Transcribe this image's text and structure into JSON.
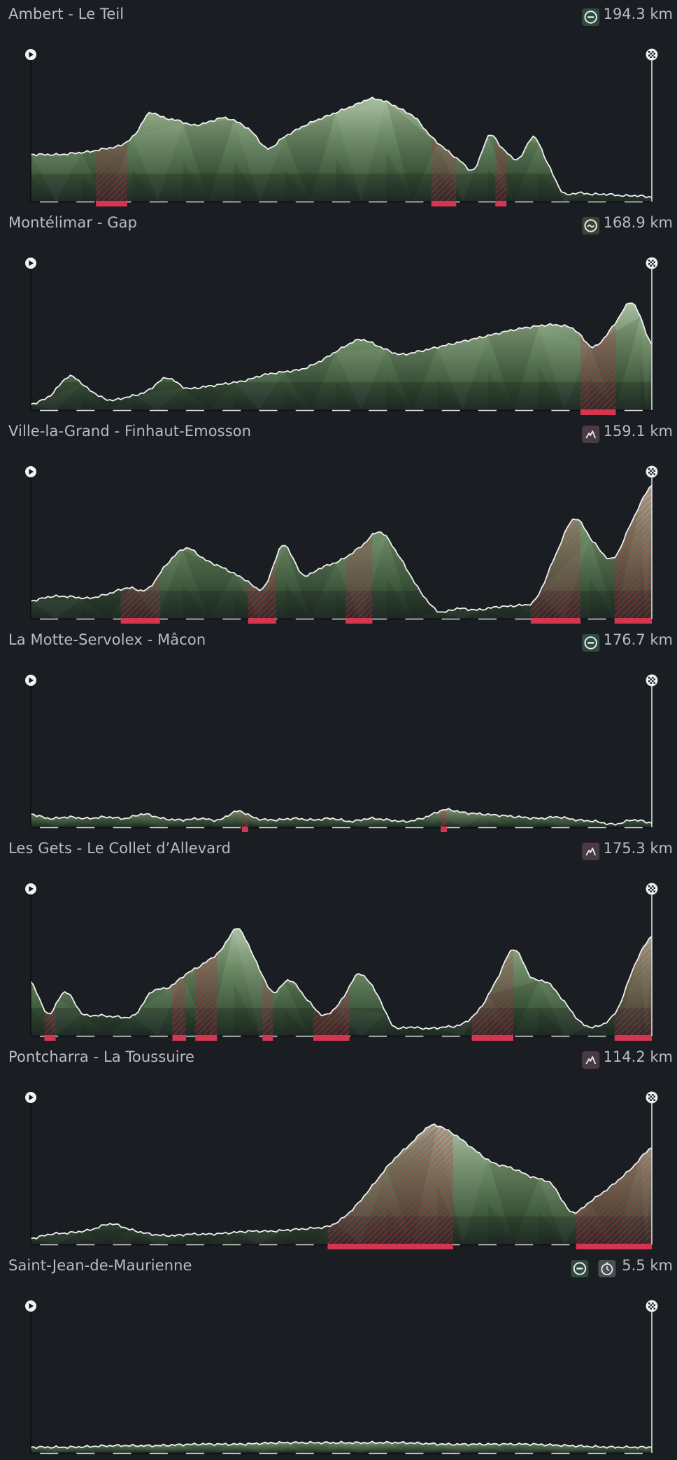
{
  "chart_data": [
    {
      "type": "area",
      "title": "Ambert - Le Teil",
      "distance": "194.3 km",
      "stage_types": [
        "flat-icon"
      ],
      "elevation_profile": [
        0.32,
        0.32,
        0.32,
        0.33,
        0.34,
        0.36,
        0.38,
        0.45,
        0.6,
        0.57,
        0.55,
        0.52,
        0.54,
        0.57,
        0.54,
        0.47,
        0.36,
        0.43,
        0.49,
        0.54,
        0.58,
        0.62,
        0.66,
        0.7,
        0.68,
        0.63,
        0.57,
        0.45,
        0.36,
        0.28,
        0.22,
        0.45,
        0.35,
        0.29,
        0.44,
        0.25,
        0.06,
        0.06,
        0.05,
        0.05,
        0.04,
        0.04,
        0.03
      ],
      "climbs": [
        [
          0.105,
          0.155
        ],
        [
          0.645,
          0.685
        ],
        [
          0.748,
          0.766
        ]
      ]
    },
    {
      "type": "area",
      "title": "Montélimar - Gap",
      "distance": "168.9 km",
      "stage_types": [
        "hilly-icon"
      ],
      "elevation_profile": [
        0.04,
        0.1,
        0.23,
        0.14,
        0.07,
        0.09,
        0.13,
        0.22,
        0.15,
        0.16,
        0.18,
        0.2,
        0.24,
        0.26,
        0.28,
        0.34,
        0.42,
        0.48,
        0.43,
        0.38,
        0.4,
        0.43,
        0.46,
        0.49,
        0.52,
        0.55,
        0.57,
        0.58,
        0.55,
        0.43,
        0.57,
        0.73,
        0.45
      ],
      "climbs": [
        [
          0.885,
          0.942
        ]
      ]
    },
    {
      "type": "area",
      "title": "Ville-la-Grand - Finhaut-Emosson",
      "distance": "159.1 km",
      "stage_types": [
        "mountain-icon"
      ],
      "elevation_profile": [
        0.12,
        0.15,
        0.15,
        0.14,
        0.17,
        0.21,
        0.2,
        0.37,
        0.48,
        0.4,
        0.34,
        0.27,
        0.21,
        0.5,
        0.3,
        0.35,
        0.4,
        0.49,
        0.59,
        0.42,
        0.2,
        0.05,
        0.07,
        0.06,
        0.08,
        0.09,
        0.13,
        0.42,
        0.68,
        0.52,
        0.41,
        0.67,
        0.91
      ],
      "climbs": [
        [
          0.145,
          0.208
        ],
        [
          0.35,
          0.395
        ],
        [
          0.507,
          0.55
        ],
        [
          0.805,
          0.885
        ],
        [
          0.94,
          1.0
        ]
      ]
    },
    {
      "type": "area",
      "title": "La Motte-Servolex - Mâcon",
      "distance": "176.7 km",
      "stage_types": [
        "flat-icon"
      ],
      "elevation_profile": [
        0.09,
        0.06,
        0.07,
        0.06,
        0.07,
        0.06,
        0.09,
        0.06,
        0.05,
        0.06,
        0.05,
        0.11,
        0.06,
        0.05,
        0.06,
        0.05,
        0.06,
        0.04,
        0.06,
        0.05,
        0.04,
        0.07,
        0.12,
        0.1,
        0.09,
        0.08,
        0.07,
        0.06,
        0.07,
        0.05,
        0.04,
        0.02,
        0.05,
        0.03
      ],
      "climbs": [
        [
          0.34,
          0.35
        ],
        [
          0.66,
          0.67
        ]
      ]
    },
    {
      "type": "area",
      "title": "Les Gets - Le Collet d’Allevard",
      "distance": "175.3 km",
      "stage_types": [
        "mountain-icon"
      ],
      "elevation_profile": [
        0.37,
        0.15,
        0.3,
        0.15,
        0.14,
        0.13,
        0.14,
        0.3,
        0.33,
        0.42,
        0.49,
        0.58,
        0.73,
        0.52,
        0.3,
        0.38,
        0.25,
        0.14,
        0.24,
        0.42,
        0.3,
        0.07,
        0.06,
        0.05,
        0.06,
        0.08,
        0.18,
        0.38,
        0.59,
        0.4,
        0.36,
        0.22,
        0.08,
        0.07,
        0.18,
        0.48,
        0.68
      ],
      "climbs": [
        [
          0.022,
          0.04
        ],
        [
          0.228,
          0.25
        ],
        [
          0.265,
          0.3
        ],
        [
          0.373,
          0.39
        ],
        [
          0.455,
          0.513
        ],
        [
          0.71,
          0.777
        ],
        [
          0.94,
          1.0
        ]
      ]
    },
    {
      "type": "area",
      "title": "Pontcharra - La Toussuire",
      "distance": "114.2 km",
      "stage_types": [
        "mountain-icon"
      ],
      "elevation_profile": [
        0.04,
        0.07,
        0.08,
        0.1,
        0.14,
        0.1,
        0.07,
        0.06,
        0.07,
        0.07,
        0.08,
        0.09,
        0.09,
        0.1,
        0.11,
        0.13,
        0.23,
        0.39,
        0.56,
        0.69,
        0.81,
        0.76,
        0.66,
        0.56,
        0.52,
        0.46,
        0.41,
        0.22,
        0.3,
        0.4,
        0.52,
        0.66
      ],
      "climbs": [
        [
          0.478,
          0.68
        ],
        [
          0.878,
          1.0
        ]
      ]
    },
    {
      "type": "area",
      "title": "Saint-Jean-de-Maurienne",
      "distance": "5.5 km",
      "stage_types": [
        "flat-icon",
        "time-trial-icon"
      ],
      "elevation_profile": [
        0.04,
        0.04,
        0.05,
        0.05,
        0.06,
        0.06,
        0.07,
        0.07,
        0.07,
        0.07,
        0.06,
        0.06,
        0.06,
        0.05,
        0.04,
        0.04
      ],
      "climbs": []
    }
  ]
}
